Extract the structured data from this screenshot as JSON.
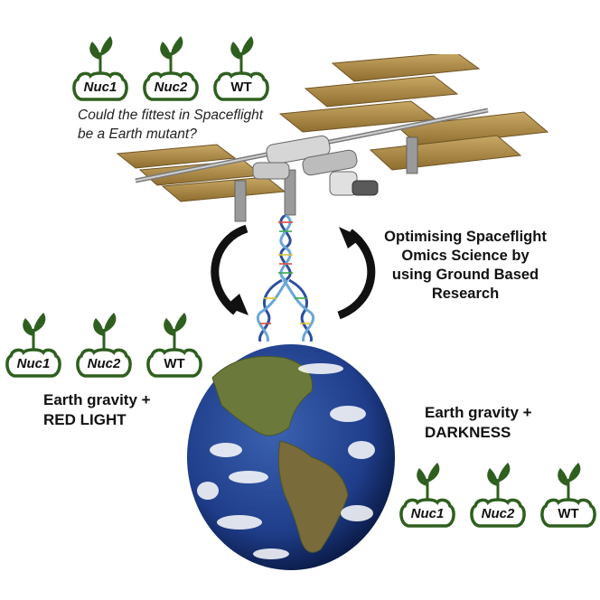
{
  "plants": {
    "top": [
      "Nuc1",
      "Nuc2",
      "WT"
    ],
    "left": [
      "Nuc1",
      "Nuc2",
      "WT"
    ],
    "right": [
      "Nuc1",
      "Nuc2",
      "WT"
    ]
  },
  "question": {
    "line1": "Could the fittest in Spaceflight",
    "line2": "be a Earth mutant?"
  },
  "caption": {
    "line1": "Optimising Spaceflight",
    "line2": "Omics Science by",
    "line3": "using Ground Based",
    "line4": "Research"
  },
  "conditions": {
    "red": {
      "line1": "Earth gravity +",
      "line2": "RED LIGHT"
    },
    "dark": {
      "line1": "Earth gravity +",
      "line2": "DARKNESS"
    }
  },
  "colors": {
    "plant_green": "#2f5f1f",
    "panel_gold": "#b08d45",
    "ocean": "#1f3d8a"
  }
}
